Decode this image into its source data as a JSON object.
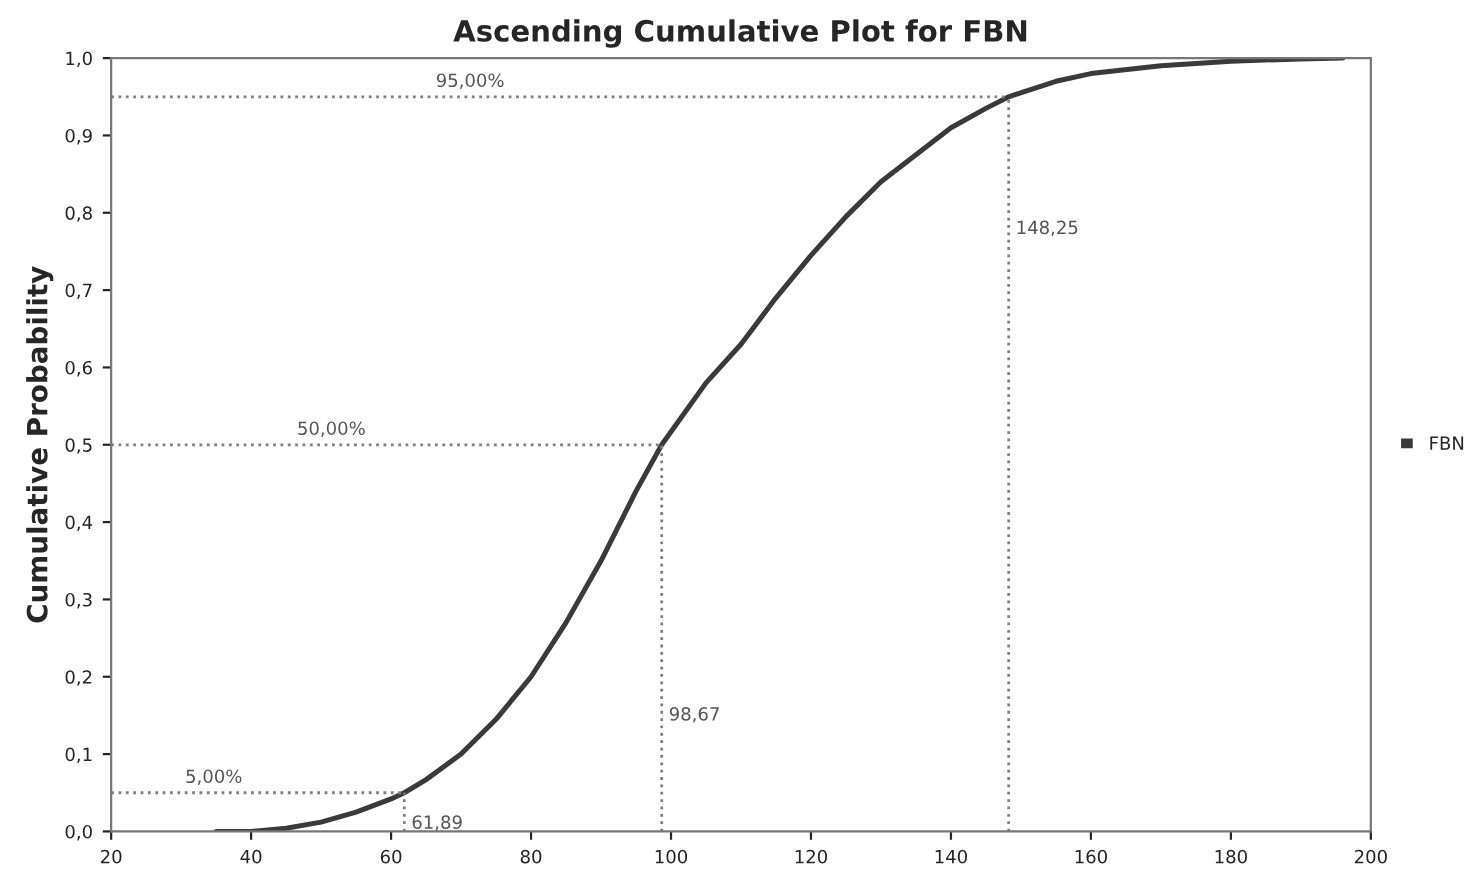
{
  "chart_data": {
    "type": "line",
    "title": "Ascending Cumulative Plot for FBN",
    "ylabel": "Cumulative Probability",
    "xlim": [
      20,
      200
    ],
    "xticks": [
      20,
      40,
      60,
      80,
      100,
      120,
      140,
      160,
      180,
      200
    ],
    "ylim": [
      0,
      1
    ],
    "yticks": [
      {
        "value": 0,
        "label": "0,0"
      },
      {
        "value": 0.1,
        "label": "0,1"
      },
      {
        "value": 0.2,
        "label": "0,2"
      },
      {
        "value": 0.3,
        "label": "0,3"
      },
      {
        "value": 0.4,
        "label": "0,4"
      },
      {
        "value": 0.5,
        "label": "0,5"
      },
      {
        "value": 0.6,
        "label": "0,6"
      },
      {
        "value": 0.7,
        "label": "0,7"
      },
      {
        "value": 0.8,
        "label": "0,8"
      },
      {
        "value": 0.9,
        "label": "0,9"
      },
      {
        "value": 1,
        "label": "1,0"
      }
    ],
    "grid": false,
    "legend": "right",
    "marker": "none",
    "line_style": "solid",
    "series": [
      {
        "name": "FBN",
        "color": "#3a3a3a",
        "x": [
          35,
          40,
          45,
          50,
          55,
          60,
          61.89,
          65,
          70,
          75,
          80,
          85,
          90,
          95,
          98.67,
          105,
          110,
          115,
          120,
          125,
          130,
          135,
          140,
          145,
          148.25,
          155,
          160,
          170,
          180,
          190,
          196
        ],
        "values": [
          0,
          0,
          0.004,
          0.012,
          0.025,
          0.042,
          0.05,
          0.067,
          0.1,
          0.145,
          0.2,
          0.27,
          0.35,
          0.44,
          0.5,
          0.58,
          0.63,
          0.69,
          0.745,
          0.795,
          0.84,
          0.875,
          0.91,
          0.935,
          0.95,
          0.97,
          0.98,
          0.99,
          0.996,
          0.999,
          1
        ]
      }
    ],
    "ref_lines": [
      {
        "axis": "y",
        "value": 0.05,
        "label": "5,00%",
        "color": "#808080",
        "line_style": "dotted"
      },
      {
        "axis": "y",
        "value": 0.5,
        "label": "50,00%",
        "color": "#808080",
        "line_style": "dotted"
      },
      {
        "axis": "y",
        "value": 0.95,
        "label": "95,00%",
        "color": "#808080",
        "line_style": "dotted"
      },
      {
        "axis": "x",
        "value": 61.89,
        "label": "61,89",
        "color": "#808080",
        "line_style": "dotted"
      },
      {
        "axis": "x",
        "value": 98.67,
        "label": "98,67",
        "color": "#808080",
        "line_style": "dotted"
      },
      {
        "axis": "x",
        "value": 148.25,
        "label": "148,25",
        "color": "#808080",
        "line_style": "dotted"
      }
    ]
  }
}
